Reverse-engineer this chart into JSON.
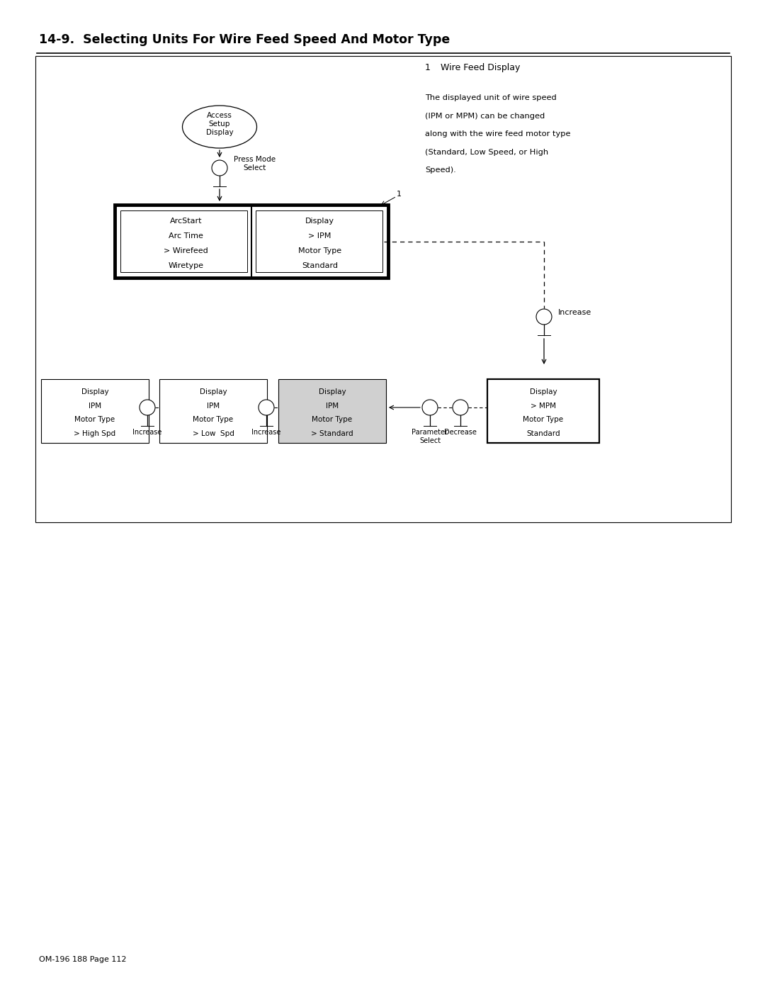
{
  "title": "14-9.  Selecting Units For Wire Feed Speed And Motor Type",
  "footnote": "OM-196 188 Page 112",
  "annotation_title": "Wire Feed Display",
  "annotation_lines": [
    "The displayed unit of wire speed",
    "(IPM or MPM) can be changed",
    "along with the wire feed motor type",
    "(Standard, Low Speed, or High",
    "Speed)."
  ],
  "ellipse_text": "Access\nSetup\nDisplay",
  "press_mode_label": "Press Mode\nSelect",
  "main_box_left": [
    "ArcStart",
    "Arc Time",
    "> Wirefeed",
    "Wiretype"
  ],
  "main_box_right": [
    "Display",
    "> IPM",
    "Motor Type",
    "Standard"
  ],
  "bottom_boxes": [
    {
      "lines": [
        "Display",
        "IPM",
        "Motor Type",
        "> High Spd"
      ],
      "thick": false,
      "gray": false
    },
    {
      "lines": [
        "Display",
        "IPM",
        "Motor Type",
        "> Low  Spd"
      ],
      "thick": false,
      "gray": false
    },
    {
      "lines": [
        "Display",
        "IPM",
        "Motor Type",
        "> Standard"
      ],
      "thick": false,
      "gray": true
    },
    {
      "lines": [
        "Display",
        "> MPM",
        "Motor Type",
        "Standard"
      ],
      "thick": true,
      "gray": false
    }
  ],
  "increase_label": "Increase"
}
